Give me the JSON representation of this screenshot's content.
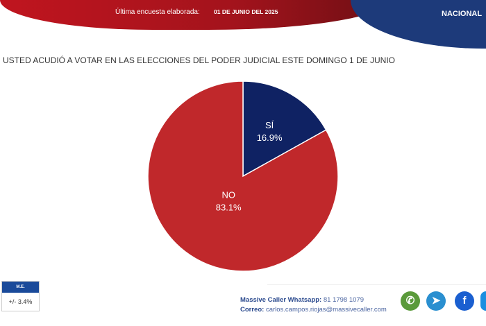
{
  "header": {
    "survey_label": "Última encuesta elaborada:",
    "survey_date": "01 DE JUNIO DEL 2025",
    "scope": "NACIONAL"
  },
  "chart_data": {
    "type": "pie",
    "title": "USTED ACUDIÓ A VOTAR EN LAS ELECCIONES DEL PODER JUDICIAL ESTE DOMINGO 1 DE JUNIO",
    "slices": [
      {
        "label": "SÍ",
        "value": 16.9,
        "value_label": "16.9%",
        "color": "#0f2263"
      },
      {
        "label": "NO",
        "value": 83.1,
        "value_label": "83.1%",
        "color": "#c0282b"
      }
    ],
    "start": "top",
    "direction": "clockwise"
  },
  "margin_error": {
    "label": "M.E.",
    "value": "+/- 3.4%"
  },
  "contact": {
    "whatsapp_label": "Massive Caller Whatsapp:",
    "whatsapp_number": "81 1798 1079",
    "email_label": "Correo:",
    "email": "carlos.campos.riojas@massivecaller.com"
  },
  "social_icons": [
    "whatsapp-icon",
    "telegram-icon",
    "facebook-icon",
    "twitter-icon"
  ]
}
